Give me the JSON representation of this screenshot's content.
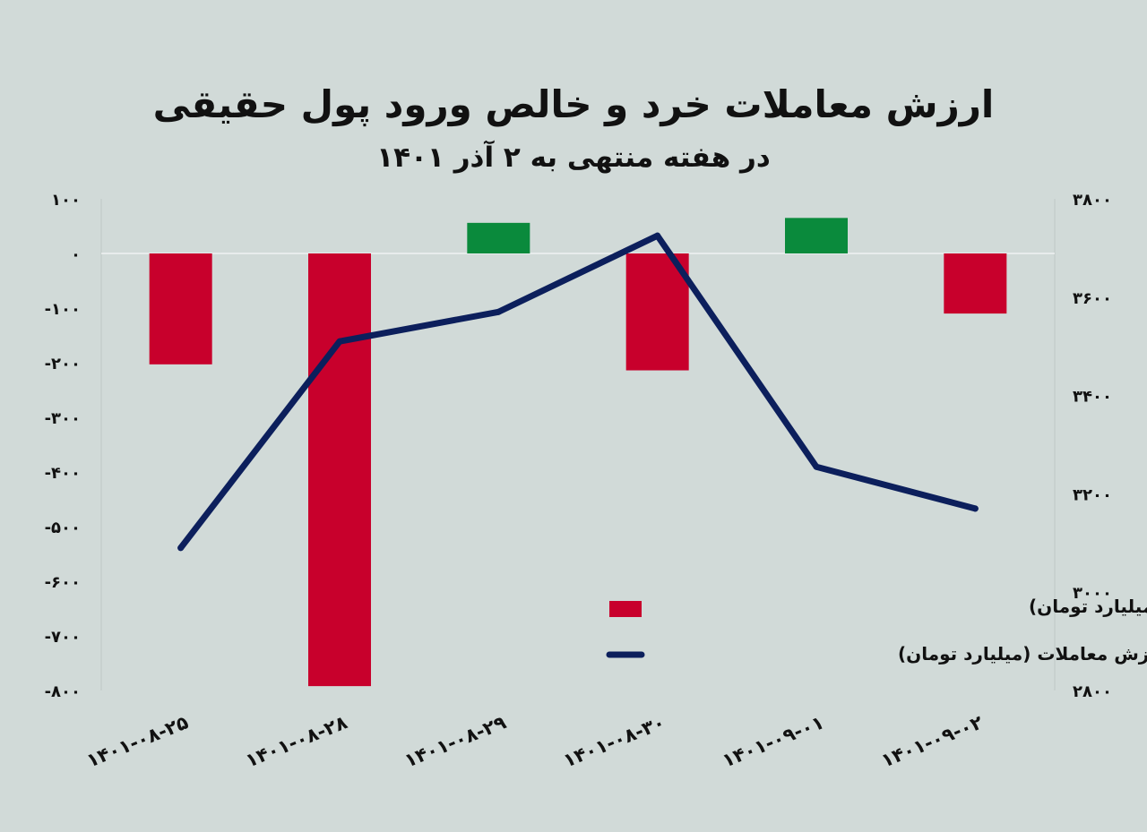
{
  "chart_data": {
    "type": "bar",
    "title": "ارزش معاملات خرد و خالص ورود پول حقیقی",
    "subtitle": "در هفته منتهی به ۲ آذر ۱۴۰۱",
    "categories": [
      "۱۴۰۱-۰۸-۲۵",
      "۱۴۰۱-۰۸-۲۸",
      "۱۴۰۱-۰۸-۲۹",
      "۱۴۰۱-۰۸-۳۰",
      "۱۴۰۱-۰۹-۰۱",
      "۱۴۰۱-۰۹-۰۲"
    ],
    "series": [
      {
        "name": "خالص ورود و خروج پول حقیقی (میلیارد تومان)",
        "type": "bar",
        "axis": "left",
        "values": [
          -203,
          -792,
          56,
          -214,
          65,
          -110
        ]
      },
      {
        "name": "ارزش معاملات (میلیارد تومان)",
        "type": "line",
        "axis": "right",
        "values": [
          3090,
          3510,
          3570,
          3725,
          3255,
          3170
        ]
      }
    ],
    "left_axis": {
      "ylim": [
        -800,
        100
      ],
      "ticks": [
        "۱۰۰",
        "۰",
        "-۱۰۰",
        "-۲۰۰",
        "-۳۰۰",
        "-۴۰۰",
        "-۵۰۰",
        "-۶۰۰",
        "-۷۰۰",
        "-۸۰۰"
      ]
    },
    "right_axis": {
      "ylim": [
        2800,
        3800
      ],
      "ticks": [
        "۳۸۰۰",
        "۳۶۰۰",
        "۳۴۰۰",
        "۳۲۰۰",
        "۳۰۰۰",
        "۲۸۰۰"
      ]
    },
    "legend": "bottom-right",
    "grid": false,
    "colors": {
      "negative": "#c8002c",
      "positive": "#0a8a3c",
      "line": "#0c1f5c",
      "zero_line": "#ffffff"
    }
  }
}
